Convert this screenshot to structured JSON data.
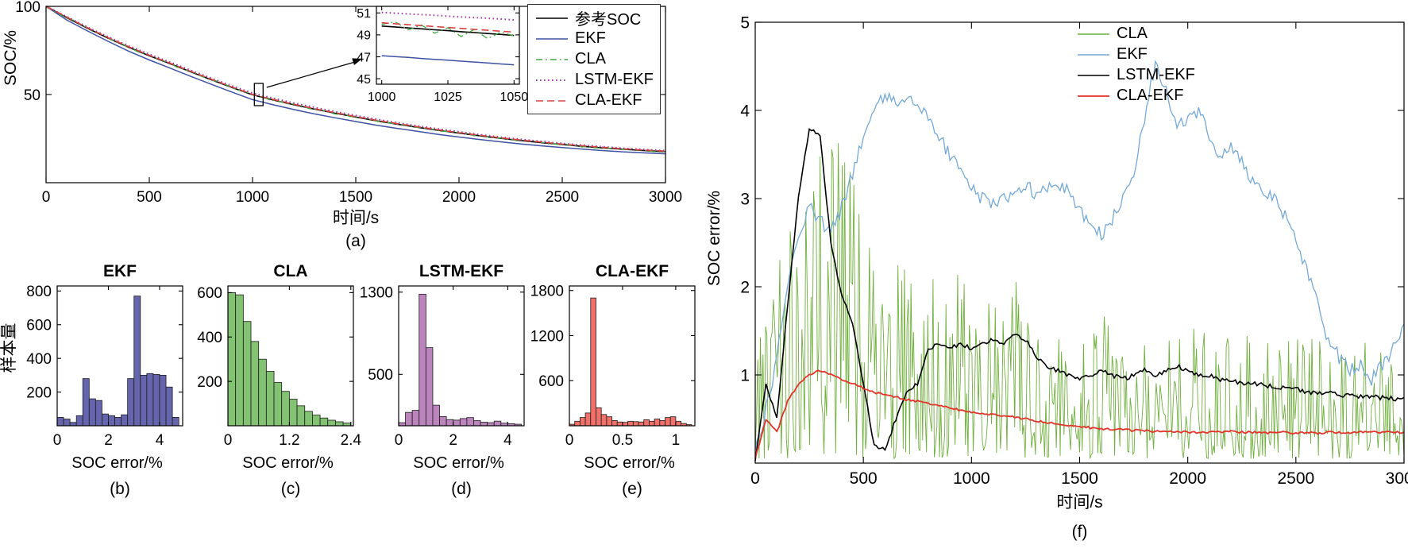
{
  "figure_bg": "#ffffff",
  "histograms_ylabel": "样本量",
  "chart_data": [
    {
      "id": "a",
      "type": "line",
      "xlabel": "时间/s",
      "ylabel": "SOC/%",
      "caption": "(a)",
      "xlim": [
        0,
        3000
      ],
      "ylim": [
        0,
        100
      ],
      "xticks": [
        0,
        500,
        1000,
        1500,
        2000,
        2500,
        3000
      ],
      "yticks": [
        50,
        100
      ],
      "x": [
        0,
        100,
        200,
        300,
        400,
        500,
        600,
        700,
        800,
        900,
        1000,
        1100,
        1200,
        1300,
        1400,
        1500,
        1600,
        1700,
        1800,
        1900,
        2000,
        2100,
        2200,
        2300,
        2400,
        2500,
        2600,
        2700,
        2800,
        2900,
        3000
      ],
      "series": [
        {
          "name": "参考SOC",
          "color": "#000000",
          "style": "solid",
          "width": 1.6,
          "values": [
            100,
            93.6,
            87.6,
            82,
            76.8,
            72,
            67.5,
            62.9,
            58.4,
            54,
            49.8,
            46.9,
            44.2,
            41.7,
            39.4,
            37.2,
            35.1,
            33.2,
            31.4,
            29.7,
            28.1,
            26.6,
            25.2,
            23.9,
            22.7,
            21.6,
            20.6,
            19.7,
            18.9,
            18.2,
            17.6
          ]
        },
        {
          "name": "EKF",
          "color": "#3f51a3",
          "style": "solid",
          "width": 1.5,
          "values": [
            100,
            92.3,
            86.1,
            80.2,
            74.6,
            69.6,
            65,
            60.3,
            55.8,
            51.4,
            47.1,
            44.2,
            41.5,
            39,
            36.8,
            34.7,
            32.6,
            30.8,
            29.1,
            27.4,
            25.9,
            24.5,
            23.2,
            22,
            20.9,
            19.9,
            19,
            18.2,
            17.5,
            16.9,
            16.4
          ]
        },
        {
          "name": "CLA",
          "color": "#3faa3f",
          "style": "dashdot",
          "width": 1.3,
          "base": "参考SOC",
          "noise_amplitude": 0.45,
          "noise_step": 15
        },
        {
          "name": "LSTM-EKF",
          "color": "#a03ba0",
          "style": "dotted",
          "width": 2,
          "values": [
            100,
            94.2,
            88.3,
            82.8,
            77.6,
            72.9,
            68.4,
            63.8,
            59.3,
            54.9,
            50.8,
            47.9,
            45.2,
            42.7,
            40.3,
            38.1,
            36,
            34,
            32.2,
            30.5,
            28.9,
            27.3,
            25.9,
            24.6,
            23.4,
            22.3,
            21.3,
            20.4,
            19.5,
            18.8,
            18.2
          ]
        },
        {
          "name": "CLA-EKF",
          "color": "#d84343",
          "style": "dashed",
          "width": 1.6,
          "values": [
            100,
            93.9,
            87.9,
            82.3,
            77.1,
            72.3,
            67.8,
            63.2,
            58.7,
            54.3,
            50.1,
            47.2,
            44.5,
            42,
            39.7,
            37.5,
            35.4,
            33.5,
            31.7,
            30,
            28.4,
            26.9,
            25.5,
            24.2,
            23,
            21.9,
            20.9,
            20,
            19.2,
            18.5,
            17.9
          ]
        }
      ],
      "legend": [
        "参考SOC",
        "EKF",
        "CLA",
        "LSTM-EKF",
        "CLA-EKF"
      ],
      "zoom_marker": {
        "t": 1030,
        "soc": 50
      },
      "inset": {
        "xlim": [
          998,
          1052
        ],
        "ylim": [
          44.5,
          51.6
        ],
        "xticks": [
          1000,
          1025,
          1050
        ],
        "yticks": [
          45,
          47,
          49,
          51
        ],
        "x": [
          1000,
          1005,
          1010,
          1015,
          1020,
          1025,
          1030,
          1035,
          1040,
          1045,
          1050
        ],
        "series": [
          {
            "name": "EKF",
            "color": "#3f51a3",
            "style": "solid",
            "width": 1.5,
            "values": [
              47.1,
              47.02,
              46.94,
              46.85,
              46.77,
              46.69,
              46.6,
              46.52,
              46.44,
              46.35,
              46.27
            ]
          },
          {
            "name": "参考SOC",
            "color": "#000000",
            "style": "solid",
            "width": 1.6,
            "values": [
              49.8,
              49.72,
              49.63,
              49.55,
              49.46,
              49.38,
              49.29,
              49.21,
              49.12,
              49.04,
              48.95
            ]
          },
          {
            "name": "CLA",
            "color": "#3faa3f",
            "style": "dashdot",
            "width": 1.3,
            "values": [
              49.95,
              50.2,
              49.45,
              49.9,
              49.15,
              49.65,
              48.85,
              49.5,
              48.65,
              49.25,
              48.9
            ]
          },
          {
            "name": "LSTM-EKF",
            "color": "#a03ba0",
            "style": "dotted",
            "width": 2,
            "values": [
              51.05,
              50.98,
              50.91,
              50.85,
              50.78,
              50.71,
              50.64,
              50.58,
              50.51,
              50.44,
              50.37
            ]
          },
          {
            "name": "CLA-EKF",
            "color": "#d84343",
            "style": "dashed",
            "width": 1.6,
            "values": [
              50.1,
              50.01,
              49.93,
              49.84,
              49.76,
              49.67,
              49.59,
              49.5,
              49.42,
              49.33,
              49.25
            ]
          }
        ]
      }
    },
    {
      "id": "b",
      "type": "bar",
      "title": "EKF",
      "xlabel": "SOC error/%",
      "caption": "(b)",
      "bar_color": "#6565ad",
      "edge_color": "#1c1c1c",
      "bin_start": 0,
      "bin_width": 0.25,
      "values": [
        50,
        40,
        20,
        60,
        280,
        160,
        150,
        70,
        60,
        50,
        65,
        280,
        770,
        300,
        310,
        305,
        300,
        230,
        50
      ],
      "xlim": [
        0,
        4.9
      ],
      "ylim": [
        0,
        830
      ],
      "xticks": [
        0,
        2,
        4
      ],
      "yticks": [
        200,
        400,
        600,
        800
      ]
    },
    {
      "id": "c",
      "type": "bar",
      "title": "CLA",
      "xlabel": "SOC error/%",
      "caption": "(c)",
      "bar_color": "#83c173",
      "edge_color": "#1c1c1c",
      "bin_start": 0,
      "bin_width": 0.15,
      "values": [
        600,
        590,
        470,
        380,
        300,
        245,
        195,
        155,
        120,
        90,
        65,
        48,
        35,
        25,
        18,
        12
      ],
      "xlim": [
        0,
        2.45
      ],
      "ylim": [
        0,
        630
      ],
      "xticks": [
        0,
        1.2,
        2.4
      ],
      "yticks": [
        200,
        400,
        600
      ]
    },
    {
      "id": "d",
      "type": "bar",
      "title": "LSTM-EKF",
      "xlabel": "SOC error/%",
      "caption": "(d)",
      "bar_color": "#bb84bd",
      "edge_color": "#1c1c1c",
      "bin_start": 0,
      "bin_width": 0.25,
      "values": [
        30,
        130,
        150,
        1280,
        760,
        200,
        90,
        60,
        55,
        70,
        80,
        50,
        35,
        30,
        45,
        25,
        20,
        15
      ],
      "xlim": [
        0,
        4.6
      ],
      "ylim": [
        0,
        1360
      ],
      "xticks": [
        0,
        2,
        4
      ],
      "yticks": [
        500,
        1300
      ]
    },
    {
      "id": "e",
      "type": "bar",
      "title": "CLA-EKF",
      "xlabel": "SOC error/%",
      "caption": "(e)",
      "bar_color": "#f2706a",
      "edge_color": "#1c1c1c",
      "bin_start": 0,
      "bin_width": 0.05,
      "values": [
        20,
        60,
        110,
        170,
        1700,
        240,
        150,
        120,
        70,
        50,
        45,
        60,
        55,
        50,
        80,
        60,
        90,
        70,
        110,
        120,
        60,
        30,
        15
      ],
      "xlim": [
        0,
        1.18
      ],
      "ylim": [
        0,
        1860
      ],
      "xticks": [
        0,
        0.5,
        1
      ],
      "yticks": [
        600,
        1200,
        1800
      ]
    },
    {
      "id": "f",
      "type": "line",
      "xlabel": "时间/s",
      "ylabel": "SOC error/%",
      "caption": "(f)",
      "xlim": [
        0,
        3000
      ],
      "ylim": [
        0,
        5
      ],
      "xticks": [
        0,
        500,
        1000,
        1500,
        2000,
        2500,
        3000
      ],
      "yticks": [
        1,
        2,
        3,
        4,
        5
      ],
      "x_step": 50,
      "series": [
        {
          "name": "CLA",
          "color": "#6fb03c",
          "width": 0.9,
          "band": {
            "step": 6,
            "x": [
              0,
              100,
              200,
              300,
              400,
              500,
              600,
              700,
              800,
              900,
              1000,
              1100,
              1200,
              1300,
              1400,
              1500,
              1600,
              1700,
              1800,
              1900,
              2000,
              2100,
              2200,
              2300,
              2400,
              2500,
              2600,
              2700,
              2800,
              2900,
              3000
            ],
            "lo": [
              0,
              0.05,
              0.05,
              0.1,
              0.1,
              0.05,
              0.05,
              0.05,
              0.05,
              0.05,
              0.05,
              0.05,
              0.05,
              0.05,
              0.05,
              0.05,
              0.05,
              0.05,
              0.05,
              0.05,
              0.05,
              0.05,
              0.05,
              0.05,
              0.05,
              0.05,
              0.05,
              0.05,
              0.05,
              0.05,
              0.05
            ],
            "hi": [
              1.2,
              2.2,
              3.2,
              4.0,
              3.9,
              2.6,
              2.4,
              2.3,
              2.2,
              2.3,
              1.9,
              1.8,
              2.1,
              1.7,
              1.6,
              1.6,
              1.7,
              1.5,
              1.6,
              1.5,
              1.6,
              1.5,
              1.4,
              1.5,
              1.4,
              1.5,
              1.4,
              1.3,
              1.4,
              1.3,
              1.4
            ]
          }
        },
        {
          "name": "EKF",
          "color": "#74a9d8",
          "width": 1.3,
          "jitter": 0.08,
          "values": [
            0.1,
            0.6,
            1.2,
            2.0,
            2.6,
            2.9,
            2.75,
            2.6,
            2.9,
            3.3,
            3.7,
            4.0,
            4.15,
            4.1,
            4.15,
            4.05,
            3.9,
            3.7,
            3.5,
            3.3,
            3.1,
            3.0,
            2.95,
            3.0,
            3.1,
            3.15,
            3.05,
            3.1,
            3.2,
            3.05,
            2.9,
            2.7,
            2.6,
            2.75,
            3.0,
            3.3,
            3.9,
            4.55,
            4.2,
            3.8,
            3.9,
            4.0,
            3.7,
            3.5,
            3.6,
            3.4,
            3.2,
            3.1,
            3.0,
            2.8,
            2.5,
            2.2,
            1.8,
            1.4,
            1.2,
            1.05,
            1.1,
            0.95,
            1.1,
            1.3,
            1.5
          ]
        },
        {
          "name": "LSTM-EKF",
          "color": "#000000",
          "width": 1.6,
          "jitter": 0.025,
          "values": [
            0.05,
            0.9,
            0.5,
            1.8,
            3.0,
            3.8,
            3.7,
            2.5,
            1.9,
            1.6,
            0.9,
            0.2,
            0.15,
            0.5,
            0.8,
            0.9,
            1.3,
            1.35,
            1.3,
            1.35,
            1.3,
            1.35,
            1.4,
            1.35,
            1.45,
            1.4,
            1.2,
            1.1,
            1.05,
            1.0,
            0.95,
            1.0,
            1.05,
            1.0,
            0.95,
            1.0,
            1.05,
            1.0,
            1.05,
            1.1,
            1.05,
            1.0,
            1.0,
            0.95,
            0.95,
            0.9,
            0.9,
            0.9,
            0.85,
            0.85,
            0.85,
            0.8,
            0.8,
            0.8,
            0.78,
            0.76,
            0.75,
            0.75,
            0.74,
            0.73,
            0.72
          ]
        },
        {
          "name": "CLA-EKF",
          "color": "#e2342a",
          "width": 1.8,
          "jitter": 0.012,
          "values": [
            0.05,
            0.5,
            0.35,
            0.7,
            0.9,
            1.0,
            1.05,
            1.0,
            0.95,
            0.9,
            0.85,
            0.8,
            0.78,
            0.75,
            0.72,
            0.7,
            0.68,
            0.65,
            0.63,
            0.6,
            0.58,
            0.56,
            0.55,
            0.53,
            0.52,
            0.5,
            0.48,
            0.46,
            0.45,
            0.43,
            0.42,
            0.4,
            0.39,
            0.38,
            0.38,
            0.37,
            0.37,
            0.36,
            0.36,
            0.36,
            0.35,
            0.35,
            0.35,
            0.35,
            0.36,
            0.35,
            0.35,
            0.34,
            0.35,
            0.35,
            0.34,
            0.35,
            0.34,
            0.35,
            0.35,
            0.34,
            0.35,
            0.35,
            0.35,
            0.35,
            0.35
          ]
        }
      ],
      "legend": [
        "CLA",
        "EKF",
        "LSTM-EKF",
        "CLA-EKF"
      ]
    }
  ]
}
